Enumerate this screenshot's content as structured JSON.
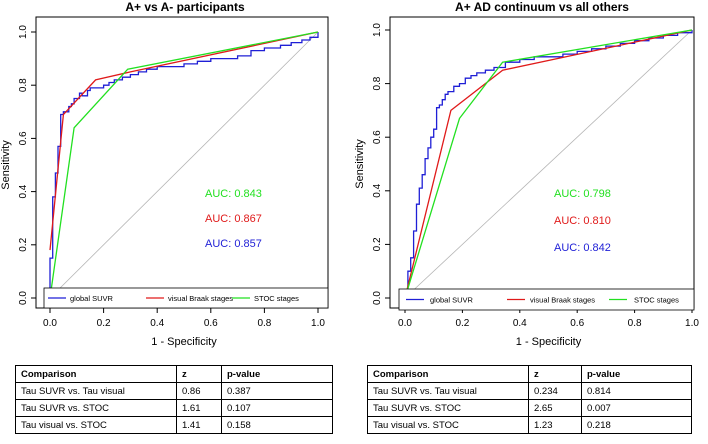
{
  "chart_data": [
    {
      "type": "line",
      "title": "A+ vs A- participants",
      "xlabel": "1 - Specificity",
      "ylabel": "Sensitivity",
      "xlim": [
        0,
        1
      ],
      "ylim": [
        0,
        1
      ],
      "xticks": [
        "0.0",
        "0.2",
        "0.4",
        "0.6",
        "0.8",
        "1.0"
      ],
      "yticks": [
        "0.0",
        "0.2",
        "0.4",
        "0.6",
        "0.8",
        "1.0"
      ],
      "legend": [
        "global SUVR",
        "visual Braak stages",
        "STOC stages"
      ],
      "auc_labels": [
        "AUC: 0.843",
        "AUC: 0.867",
        "AUC: 0.857"
      ],
      "series": [
        {
          "name": "global SUVR",
          "color": "#1f1fd6",
          "step": true,
          "x": [
            0,
            0,
            0.01,
            0.01,
            0.02,
            0.02,
            0.03,
            0.03,
            0.04,
            0.04,
            0.05,
            0.06,
            0.07,
            0.08,
            0.09,
            0.11,
            0.12,
            0.14,
            0.15,
            0.17,
            0.18,
            0.2,
            0.22,
            0.24,
            0.27,
            0.3,
            0.33,
            0.36,
            0.4,
            0.44,
            0.5,
            0.55,
            0.6,
            0.66,
            0.7,
            0.75,
            0.8,
            0.86,
            0.9,
            0.94,
            0.97,
            1.0
          ],
          "y": [
            0,
            0.15,
            0.25,
            0.38,
            0.41,
            0.47,
            0.5,
            0.57,
            0.61,
            0.69,
            0.7,
            0.7,
            0.72,
            0.73,
            0.75,
            0.77,
            0.76,
            0.78,
            0.79,
            0.79,
            0.79,
            0.8,
            0.81,
            0.82,
            0.83,
            0.84,
            0.85,
            0.86,
            0.87,
            0.87,
            0.88,
            0.89,
            0.9,
            0.9,
            0.91,
            0.93,
            0.94,
            0.95,
            0.96,
            0.97,
            0.98,
            1.0
          ]
        },
        {
          "name": "visual Braak stages",
          "color": "#e01a1a",
          "step": false,
          "x": [
            0,
            0.05,
            0.17,
            0.3,
            1.0
          ],
          "y": [
            0.18,
            0.69,
            0.82,
            0.85,
            1.0
          ]
        },
        {
          "name": "STOC stages",
          "color": "#22e020",
          "step": false,
          "x": [
            0,
            0.09,
            0.29,
            1.0
          ],
          "y": [
            0,
            0.64,
            0.86,
            1.0
          ]
        }
      ]
    },
    {
      "type": "line",
      "title": "A+ AD continuum vs all others",
      "xlabel": "1 - Specificity",
      "ylabel": "Sensitivity",
      "xlim": [
        0,
        1
      ],
      "ylim": [
        0,
        1
      ],
      "xticks": [
        "0.0",
        "0.2",
        "0.4",
        "0.6",
        "0.8",
        "1.0"
      ],
      "yticks": [
        "0.0",
        "0.2",
        "0.4",
        "0.6",
        "0.8",
        "1.0"
      ],
      "legend": [
        "global SUVR",
        "visual Braak stages",
        "STOC stages"
      ],
      "auc_labels": [
        "AUC: 0.798",
        "AUC: 0.810",
        "AUC: 0.842"
      ],
      "series": [
        {
          "name": "global SUVR",
          "color": "#1f1fd6",
          "step": true,
          "x": [
            0,
            0.01,
            0.02,
            0.03,
            0.04,
            0.05,
            0.06,
            0.07,
            0.08,
            0.09,
            0.1,
            0.11,
            0.12,
            0.13,
            0.14,
            0.15,
            0.17,
            0.19,
            0.21,
            0.23,
            0.25,
            0.28,
            0.31,
            0.35,
            0.4,
            0.45,
            0.5,
            0.55,
            0.6,
            0.65,
            0.7,
            0.75,
            0.8,
            0.85,
            0.9,
            0.95,
            1.0
          ],
          "y": [
            0,
            0.1,
            0.15,
            0.25,
            0.35,
            0.41,
            0.46,
            0.52,
            0.56,
            0.6,
            0.63,
            0.71,
            0.72,
            0.74,
            0.76,
            0.77,
            0.79,
            0.8,
            0.82,
            0.83,
            0.84,
            0.85,
            0.86,
            0.88,
            0.89,
            0.9,
            0.9,
            0.91,
            0.92,
            0.93,
            0.94,
            0.95,
            0.96,
            0.97,
            0.98,
            0.99,
            1.0
          ]
        },
        {
          "name": "visual Braak stages",
          "color": "#e01a1a",
          "step": false,
          "x": [
            0,
            0.16,
            0.34,
            1.0
          ],
          "y": [
            0,
            0.7,
            0.85,
            1.0
          ]
        },
        {
          "name": "STOC stages",
          "color": "#22e020",
          "step": false,
          "x": [
            0,
            0.19,
            0.34,
            1.0
          ],
          "y": [
            0,
            0.67,
            0.88,
            1.0
          ]
        }
      ]
    }
  ],
  "tables": [
    {
      "headers": [
        "Comparison",
        "z",
        "p-value"
      ],
      "rows": [
        [
          "Tau SUVR vs. Tau visual",
          "0.86",
          "0.387"
        ],
        [
          "Tau SUVR vs. STOC",
          "1.61",
          "0.107"
        ],
        [
          "Tau visual vs. STOC",
          "1.41",
          "0.158"
        ]
      ]
    },
    {
      "headers": [
        "Comparison",
        "z",
        "p-value"
      ],
      "rows": [
        [
          "Tau SUVR vs. Tau visual",
          "0.234",
          "0.814"
        ],
        [
          "Tau SUVR vs. STOC",
          "2.65",
          "0.007"
        ],
        [
          "Tau visual vs. STOC",
          "1.23",
          "0.218"
        ]
      ]
    }
  ]
}
